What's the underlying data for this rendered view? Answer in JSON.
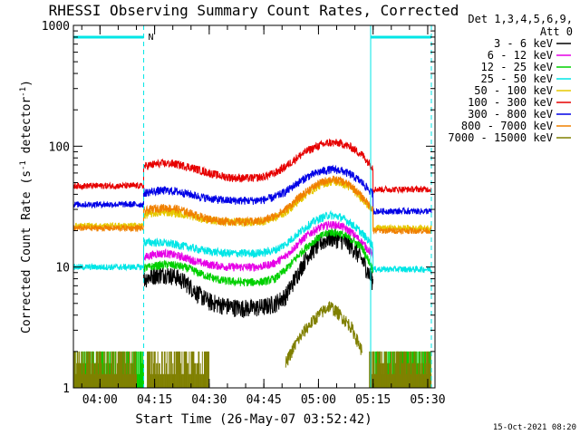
{
  "chart_data": {
    "type": "line",
    "title": "RHESSI Observing Summary Count Rates, Corrected",
    "xlabel": "Start Time (26-May-07 03:52:42)",
    "ylabel_main": "Corrected Count Rate (s",
    "ylabel_sup1": "-1",
    "ylabel_mid": " detector",
    "ylabel_sup2": "-1",
    "ylabel_end": ")",
    "yscale": "log",
    "ylim": [
      1,
      1000
    ],
    "xlim": [
      "03:52:42",
      "05:32:00"
    ],
    "x_ticks": [
      "04:00",
      "04:15",
      "04:30",
      "04:45",
      "05:00",
      "05:15",
      "05:30"
    ],
    "y_ticks": [
      "1",
      "10",
      "100",
      "1000"
    ],
    "footer": "15-Oct-2021 08:20",
    "night_marker_label": "N",
    "legend": {
      "header1": "Det 1,3,4,5,6,9,",
      "header2": "Att 0",
      "placement": "top-right"
    },
    "series": [
      {
        "name": "3 - 6 keV",
        "color": "#000000",
        "x": [
          "04:12",
          "04:15",
          "04:18",
          "04:21",
          "04:24",
          "04:27",
          "04:30",
          "04:33",
          "04:36",
          "04:39",
          "04:42",
          "04:45",
          "04:48",
          "04:51",
          "04:54",
          "04:57",
          "05:00",
          "05:03",
          "05:06",
          "05:09",
          "05:12",
          "05:15"
        ],
        "y": [
          8,
          8.6,
          8.8,
          8.3,
          7.3,
          6,
          5.2,
          4.9,
          4.7,
          4.6,
          4.6,
          4.7,
          5,
          5.8,
          8.5,
          12.5,
          15.5,
          17.5,
          17,
          15,
          11.5,
          7.5
        ]
      },
      {
        "name": "6 - 12 keV",
        "color": "#e600e6",
        "x": [
          "04:12",
          "04:15",
          "04:18",
          "04:21",
          "04:24",
          "04:27",
          "04:30",
          "04:33",
          "04:36",
          "04:39",
          "04:42",
          "04:45",
          "04:48",
          "04:51",
          "04:54",
          "04:57",
          "05:00",
          "05:03",
          "05:06",
          "05:09",
          "05:12",
          "05:15"
        ],
        "y": [
          12,
          12.8,
          13,
          12.5,
          11.8,
          11,
          10.5,
          10.2,
          10,
          10,
          10,
          10.2,
          10.8,
          12.3,
          15.2,
          18.5,
          21,
          22.5,
          22,
          19.5,
          16,
          12.5
        ]
      },
      {
        "name": "12 - 25 keV",
        "color": "#00d000",
        "x": [
          "04:12",
          "04:15",
          "04:18",
          "04:21",
          "04:24",
          "04:27",
          "04:30",
          "04:33",
          "04:36",
          "04:39",
          "04:42",
          "04:45",
          "04:48",
          "04:51",
          "04:54",
          "04:57",
          "05:00",
          "05:03",
          "05:06",
          "05:09",
          "05:12",
          "05:15"
        ],
        "y": [
          9.8,
          10.2,
          10.5,
          10.3,
          9.8,
          9,
          8.3,
          7.8,
          7.6,
          7.5,
          7.5,
          7.6,
          8,
          9.5,
          12,
          15,
          17.5,
          19.5,
          19,
          17,
          14.5,
          9.5
        ]
      },
      {
        "name": "25 - 50 keV",
        "color": "#00e6e6",
        "x": [
          "04:12",
          "04:15",
          "04:18",
          "04:21",
          "04:24",
          "04:27",
          "04:30",
          "04:33",
          "04:36",
          "04:39",
          "04:42",
          "04:45",
          "04:48",
          "04:51",
          "04:54",
          "04:57",
          "05:00",
          "05:03",
          "05:06",
          "05:09",
          "05:12",
          "05:15"
        ],
        "y": [
          16,
          16,
          15.8,
          15.3,
          14.7,
          14,
          13.5,
          13.2,
          13,
          13,
          13,
          13.2,
          13.8,
          15.5,
          18.5,
          22,
          25,
          27,
          26,
          23,
          19,
          15
        ]
      },
      {
        "name": "50 - 100 keV",
        "color": "#e6c800",
        "x": [
          "04:12",
          "04:15",
          "04:18",
          "04:21",
          "04:24",
          "04:27",
          "04:30",
          "04:33",
          "04:36",
          "04:39",
          "04:42",
          "04:45",
          "04:48",
          "04:51",
          "04:54",
          "04:57",
          "05:00",
          "05:03",
          "05:06",
          "05:09",
          "05:12",
          "05:15"
        ],
        "y": [
          27,
          28,
          28.5,
          28,
          27,
          25.5,
          24.5,
          24,
          23.5,
          23.5,
          23.5,
          24,
          25.5,
          28.5,
          34,
          41,
          47,
          51,
          50,
          45,
          37,
          29
        ]
      },
      {
        "name": "100 - 300 keV",
        "color": "#e60000",
        "x": [
          "04:12",
          "04:15",
          "04:18",
          "04:21",
          "04:24",
          "04:27",
          "04:30",
          "04:33",
          "04:36",
          "04:39",
          "04:42",
          "04:45",
          "04:48",
          "04:51",
          "04:54",
          "04:57",
          "05:00",
          "05:03",
          "05:06",
          "05:09",
          "05:12",
          "05:15"
        ],
        "y": [
          68,
          71,
          72,
          71,
          68,
          64,
          60,
          57,
          55,
          54.5,
          54.5,
          56,
          60,
          68,
          80,
          92,
          101,
          107,
          106,
          98,
          85,
          66
        ]
      },
      {
        "name": "300 - 800 keV",
        "color": "#0000e6",
        "x": [
          "04:12",
          "04:15",
          "04:18",
          "04:21",
          "04:24",
          "04:27",
          "04:30",
          "04:33",
          "04:36",
          "04:39",
          "04:42",
          "04:45",
          "04:48",
          "04:51",
          "04:54",
          "04:57",
          "05:00",
          "05:03",
          "05:06",
          "05:09",
          "05:12",
          "05:15"
        ],
        "y": [
          41,
          42.5,
          43,
          42.3,
          40.5,
          38.5,
          37,
          36,
          35.5,
          35.5,
          35.5,
          36,
          38,
          42,
          49,
          56,
          61,
          64,
          63.5,
          58,
          50,
          40
        ]
      },
      {
        "name": "800 - 7000 keV",
        "color": "#f08000",
        "x": [
          "04:12",
          "04:15",
          "04:18",
          "04:21",
          "04:24",
          "04:27",
          "04:30",
          "04:33",
          "04:36",
          "04:39",
          "04:42",
          "04:45",
          "04:48",
          "04:51",
          "04:54",
          "04:57",
          "05:00",
          "05:03",
          "05:06",
          "05:09",
          "05:12",
          "05:15"
        ],
        "y": [
          29,
          30.5,
          31,
          30.3,
          28.5,
          26.5,
          25,
          24.2,
          23.8,
          23.8,
          23.8,
          24.4,
          26.5,
          30,
          36,
          43,
          49,
          53,
          52,
          47,
          38,
          30
        ]
      },
      {
        "name": "7000 - 15000 keV",
        "color": "#808000",
        "x": [
          "04:51",
          "04:54",
          "04:57",
          "05:00",
          "05:03",
          "05:06",
          "05:09",
          "05:12"
        ],
        "y": [
          1.6,
          2.4,
          3.2,
          4,
          4.8,
          4,
          3.2,
          2
        ]
      }
    ]
  }
}
